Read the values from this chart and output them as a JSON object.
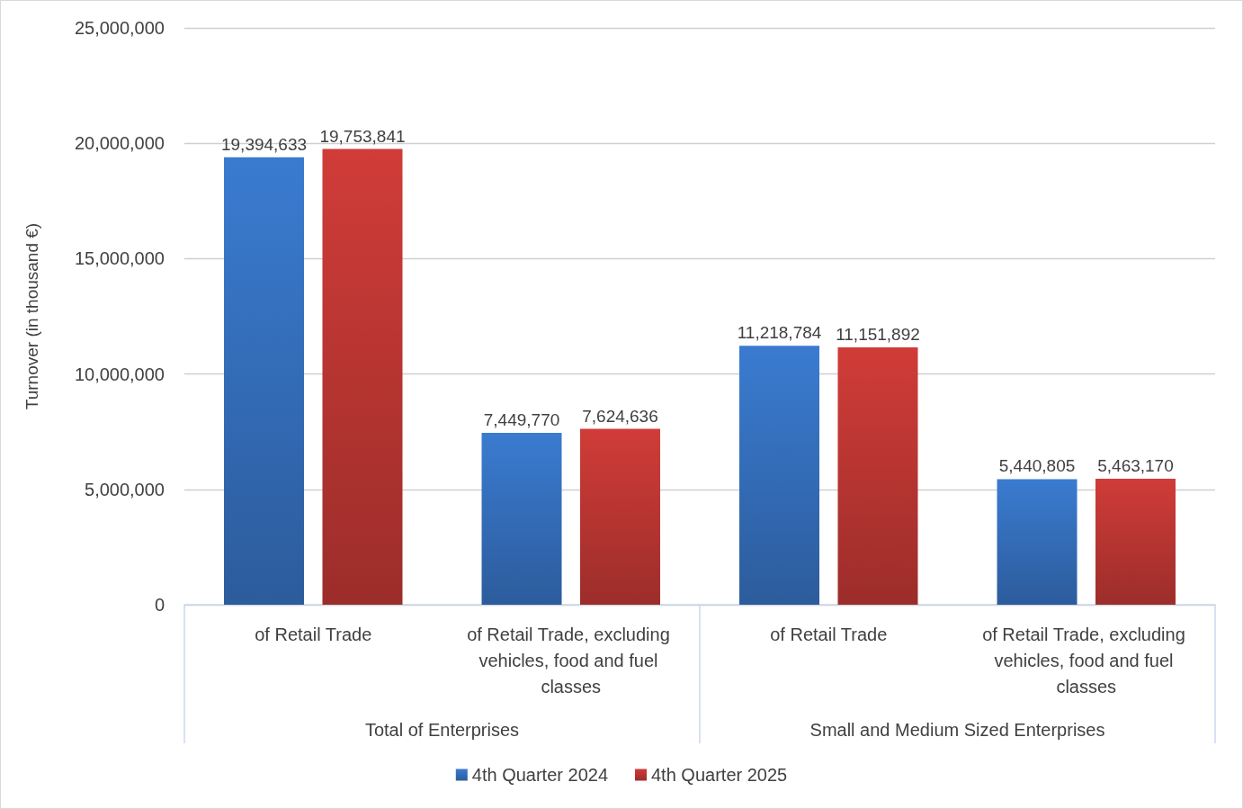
{
  "chart_data": {
    "type": "bar",
    "ylabel": "Turnover (in thousand €)",
    "categories": [
      "of Retail Trade",
      "of Retail Trade, excluding vehicles, food and fuel classes",
      "of Retail Trade",
      "of Retail Trade, excluding vehicles, food and fuel classes"
    ],
    "series": [
      {
        "name": "4th Quarter 2024",
        "color": "#3a7bd0",
        "values": [
          19394633,
          7449770,
          11218784,
          5440805
        ],
        "value_labels": [
          "19,394,633",
          "7,449,770",
          "11,218,784",
          "5,440,805"
        ]
      },
      {
        "name": "4th Quarter 2025",
        "color": "#d03c38",
        "values": [
          19753841,
          7624636,
          11151892,
          5463170
        ],
        "value_labels": [
          "19,753,841",
          "7,624,636",
          "11,151,892",
          "5,463,170"
        ]
      }
    ],
    "annotations": [
      "Total of Enterprises",
      "Small and Medium Sized Enterprises"
    ],
    "ylim": [
      0,
      25000000
    ],
    "yticks": [
      0,
      {
        "value": 5000000,
        "label": "5,000,000"
      },
      {
        "value": 10000000,
        "label": "10,000,000"
      },
      {
        "value": 15000000,
        "label": "15,000,000"
      },
      {
        "value": 20000000,
        "label": "20,000,000"
      },
      {
        "value": 25000000,
        "label": "25,000,000"
      }
    ],
    "grid": "y",
    "legend": "bottom"
  }
}
